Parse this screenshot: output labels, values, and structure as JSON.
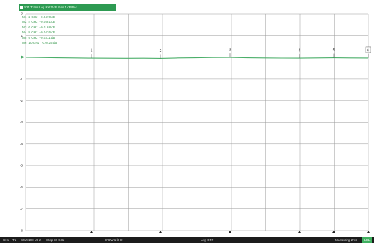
{
  "trace": {
    "title": "S21 Trans Log Ref 0 dB Res 1 dB/Div"
  },
  "markers": [
    {
      "name": "M1",
      "freq": "2 GHz",
      "value": "-0.0470 dB"
    },
    {
      "name": "M2",
      "freq": "4 GHz",
      "value": "-0.0581 dB"
    },
    {
      "name": "M3",
      "freq": "6 GHz",
      "value": "-0.0168 dB"
    },
    {
      "name": "M4",
      "freq": "8 GHz",
      "value": "-0.0476 dB"
    },
    {
      "name": "M5",
      "freq": "9 GHz",
      "value": "-0.0311 dB"
    },
    {
      "name": "M6",
      "freq": "10 GHz",
      "value": "-0.0426 dB"
    }
  ],
  "chart_data": {
    "type": "line",
    "ylim": [
      -8,
      2
    ],
    "xlim": [
      0.1,
      10
    ],
    "y_ticks": [
      "2",
      "1",
      "0",
      "-1",
      "-2",
      "-3",
      "-4",
      "-5",
      "-6",
      "-7",
      "-8"
    ],
    "grid": true,
    "marker_labels": [
      "1",
      "2",
      "3",
      "4",
      "5",
      "6"
    ],
    "marker_x": [
      2,
      4,
      6,
      8,
      9,
      10
    ],
    "series": [
      {
        "color": "#4caf6a",
        "x": [
          0.1,
          0.5,
          1,
          1.5,
          2,
          2.5,
          3,
          3.5,
          4,
          4.5,
          5,
          5.5,
          6,
          6.5,
          7,
          7.5,
          8,
          8.5,
          9,
          9.5,
          10
        ],
        "y": [
          -0.01,
          -0.02,
          -0.03,
          -0.04,
          -0.047,
          -0.05,
          -0.055,
          -0.05,
          -0.058,
          -0.04,
          -0.03,
          -0.02,
          -0.017,
          -0.03,
          -0.04,
          -0.045,
          -0.048,
          -0.04,
          -0.031,
          -0.038,
          -0.043
        ]
      }
    ]
  },
  "status_bar": {
    "channel": "CH1",
    "trace": "T1",
    "start": "Start 100 MHz",
    "stop": "Stop 10 GHz",
    "ifbw": "IFBW 1 kHz",
    "avg": "Avg OFF",
    "measuring": "Measuring 2ms",
    "badge": "LCL"
  },
  "colors": {
    "trace": "#4caf6a",
    "marker_text": "#3a9a50",
    "title_bg": "#2d9a52",
    "grid": "#9a9a9a",
    "status_bg": "#1c1c1c"
  }
}
